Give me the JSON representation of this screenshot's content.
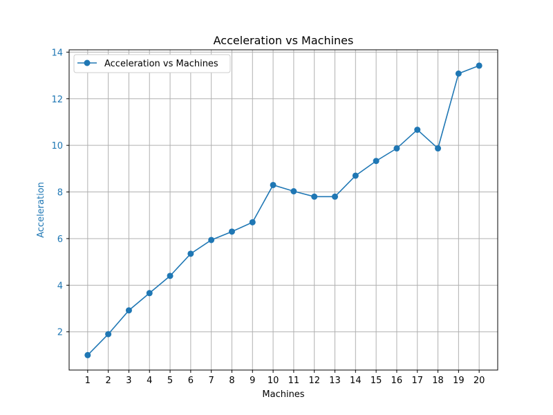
{
  "chart_data": {
    "type": "line",
    "title": "Acceleration vs Machines",
    "xlabel": "Machines",
    "ylabel": "Acceleration",
    "categories": [
      "1",
      "2",
      "3",
      "4",
      "5",
      "6",
      "7",
      "8",
      "9",
      "10",
      "11",
      "12",
      "13",
      "14",
      "15",
      "16",
      "17",
      "18",
      "19",
      "20"
    ],
    "series": [
      {
        "name": "Acceleration vs Machines",
        "x": [
          1,
          2,
          3,
          4,
          5,
          6,
          7,
          8,
          9,
          10,
          11,
          12,
          13,
          14,
          15,
          16,
          17,
          18,
          19,
          20
        ],
        "values": [
          1.0,
          1.9,
          2.92,
          3.66,
          4.4,
          5.35,
          5.94,
          6.3,
          6.7,
          8.3,
          8.03,
          7.8,
          7.8,
          8.7,
          9.33,
          9.87,
          10.67,
          9.87,
          13.08,
          13.42
        ]
      }
    ],
    "xlim": [
      0.1,
      20.9
    ],
    "ylim": [
      0.36,
      14.1
    ],
    "yticks": [
      2,
      4,
      6,
      8,
      10,
      12,
      14
    ],
    "grid": true,
    "legend_position": "upper-left",
    "colors": {
      "line": "#1f77b4",
      "ylabel": "#1f77b4",
      "ytick_labels": "#1f77b4",
      "grid": "#b0b0b0",
      "axes": "#000000"
    }
  }
}
